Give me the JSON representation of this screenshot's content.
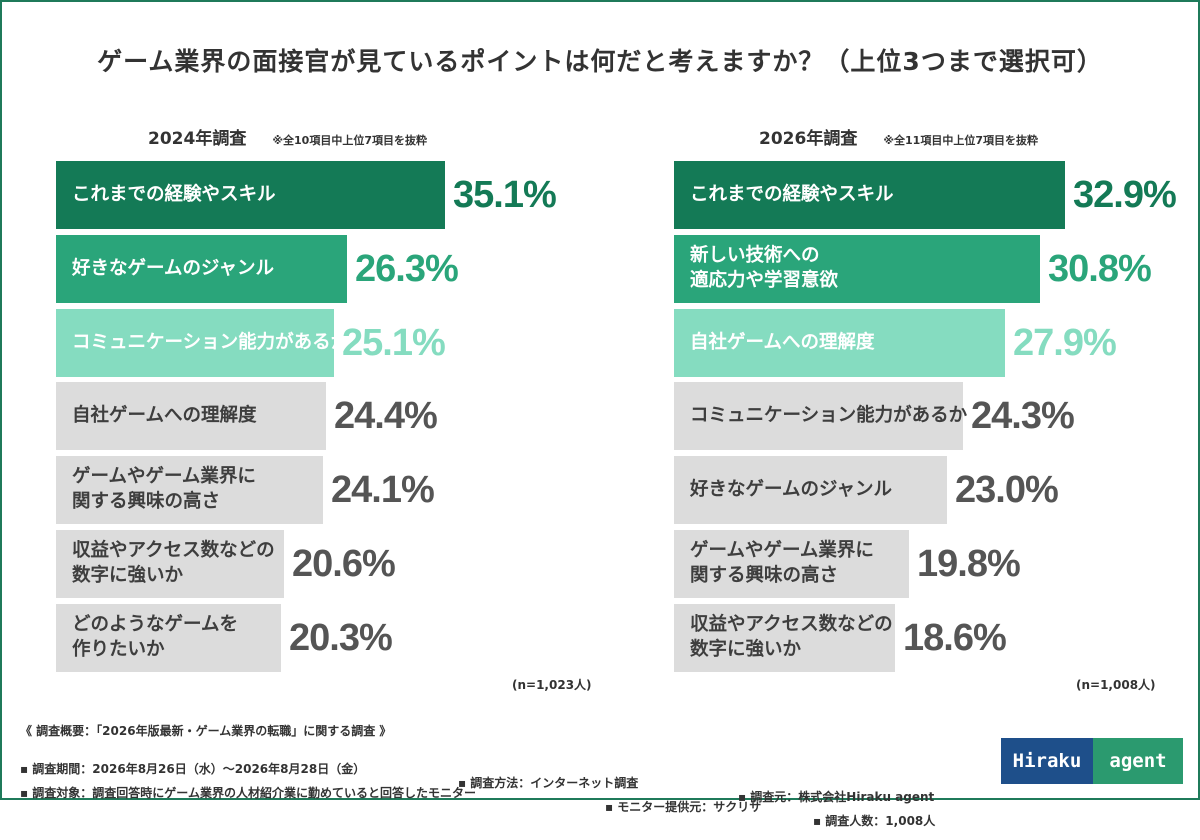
{
  "title": "ゲーム業界の面接官が見ているポイントは何だと考えますか？（上位3つまで選択可）",
  "colors": {
    "green1": "#147a56",
    "green2": "#2aa57a",
    "green3": "#85dcc0",
    "gray": "#dcdcdc",
    "frame": "#1f7a5a"
  },
  "chart_data": [
    {
      "type": "bar",
      "orientation": "horizontal",
      "title": "2024年調査",
      "note": "※全10項目中上位7項目を抜粋",
      "sample": "(n=1,023人)",
      "categories": [
        "これまでの経験やスキル",
        "好きなゲームのジャンル",
        "コミュニケーション能力があるか",
        "自社ゲームへの理解度",
        "ゲームやゲーム業界に\n関する興味の高さ",
        "収益やアクセス数などの\n数字に強いか",
        "どのようなゲームを\n作りたいか"
      ],
      "values": [
        35.1,
        26.3,
        25.1,
        24.4,
        24.1,
        20.6,
        20.3
      ],
      "labels": [
        "35.1%",
        "26.3%",
        "25.1%",
        "24.4%",
        "24.1%",
        "20.6%",
        "20.3%"
      ],
      "styles": [
        "green1",
        "green2",
        "green3",
        "gray",
        "gray",
        "gray",
        "gray"
      ]
    },
    {
      "type": "bar",
      "orientation": "horizontal",
      "title": "2026年調査",
      "note": "※全11項目中上位7項目を抜粋",
      "sample": "(n=1,008人)",
      "categories": [
        "これまでの経験やスキル",
        "新しい技術への\n適応力や学習意欲",
        "自社ゲームへの理解度",
        "コミュニケーション能力があるか",
        "好きなゲームのジャンル",
        "ゲームやゲーム業界に\n関する興味の高さ",
        "収益やアクセス数などの\n数字に強いか"
      ],
      "values": [
        32.9,
        30.8,
        27.9,
        24.3,
        23.0,
        19.8,
        18.6
      ],
      "labels": [
        "32.9%",
        "30.8%",
        "27.9%",
        "24.3%",
        "23.0%",
        "19.8%",
        "18.6%"
      ],
      "styles": [
        "green1",
        "green2",
        "green3",
        "gray",
        "gray",
        "gray",
        "gray"
      ]
    }
  ],
  "footer": {
    "overview": "《 調査概要：「2026年版最新・ゲーム業界の転職」に関する調査 》",
    "period": "▪ 調査期間：2026年8月26日（水）〜2026年8月28日（金）",
    "method": "▪ 調査方法：インターネット調査",
    "organizer": "▪ 調査元：株式会社Hiraku agent",
    "target": "▪ 調査対象：調査回答時にゲーム業界の人材紹介業に勤めていると回答したモニター",
    "provider": "▪ モニター提供元：サクリサ",
    "count": "▪ 調査人数：1,008人"
  },
  "logo": {
    "left": "Hiraku",
    "right": "agent"
  }
}
